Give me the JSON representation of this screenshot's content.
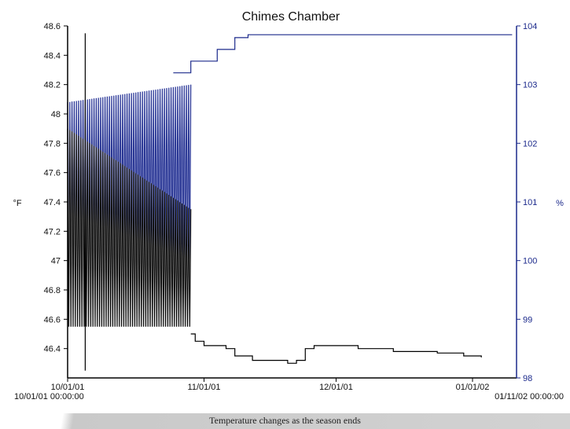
{
  "caption": "Temperature changes as the season ends",
  "colors": {
    "primary_series": "#000000",
    "secondary_series": "#1c2a8c",
    "secondary_light": "#9aa0d6",
    "right_axis": "#1c2a8c"
  },
  "chart_data": {
    "type": "line",
    "title": "Chimes Chamber",
    "ylabel_left": "°F",
    "ylabel_right": "%",
    "x_tick_labels": [
      "10/01/01",
      "11/01/01",
      "12/01/01",
      "01/01/02"
    ],
    "x_start_label": "10/01/01 00:00:00",
    "x_end_label": "01/11/02 00:00:00",
    "xlim_days": [
      0,
      102
    ],
    "x_tick_days": [
      0,
      31,
      61,
      92
    ],
    "ylim_left": [
      46.2,
      48.6
    ],
    "y_ticks_left": [
      "48.6",
      "48.4",
      "48.2",
      "48",
      "47.8",
      "47.6",
      "47.4",
      "47.2",
      "47",
      "46.8",
      "46.6",
      "46.4"
    ],
    "ylim_right": [
      98,
      104
    ],
    "y_ticks_right": [
      "104",
      "103",
      "102",
      "101",
      "100",
      "99",
      "98"
    ],
    "grid": false,
    "series": [
      {
        "name": "°F",
        "axis": "left",
        "osc_until_day": 28,
        "osc_low": 46.55,
        "osc_high_start": 47.9,
        "osc_high_end": 47.35,
        "spikes": [
          {
            "day": 4,
            "value": 48.55
          },
          {
            "day": 4,
            "value": 46.25
          }
        ],
        "steps": [
          {
            "day": 28,
            "value": 46.5
          },
          {
            "day": 29,
            "value": 46.45
          },
          {
            "day": 31,
            "value": 46.42
          },
          {
            "day": 34,
            "value": 46.42
          },
          {
            "day": 36,
            "value": 46.4
          },
          {
            "day": 38,
            "value": 46.35
          },
          {
            "day": 42,
            "value": 46.32
          },
          {
            "day": 50,
            "value": 46.3
          },
          {
            "day": 52,
            "value": 46.32
          },
          {
            "day": 54,
            "value": 46.4
          },
          {
            "day": 56,
            "value": 46.42
          },
          {
            "day": 66,
            "value": 46.4
          },
          {
            "day": 70,
            "value": 46.4
          },
          {
            "day": 74,
            "value": 46.38
          },
          {
            "day": 84,
            "value": 46.37
          },
          {
            "day": 90,
            "value": 46.35
          },
          {
            "day": 94,
            "value": 46.34
          }
        ],
        "end_day": 94
      },
      {
        "name": "%",
        "axis": "right",
        "osc_until_day": 28,
        "osc_low": 99.9,
        "osc_high_start": 102.7,
        "osc_high_end": 103.0,
        "steps": [
          {
            "day": 24,
            "value": 103.2
          },
          {
            "day": 28,
            "value": 103.4
          },
          {
            "day": 34,
            "value": 103.6
          },
          {
            "day": 38,
            "value": 103.8
          },
          {
            "day": 40,
            "value": 103.8
          },
          {
            "day": 41,
            "value": 103.85
          }
        ],
        "end_day": 101
      }
    ]
  }
}
